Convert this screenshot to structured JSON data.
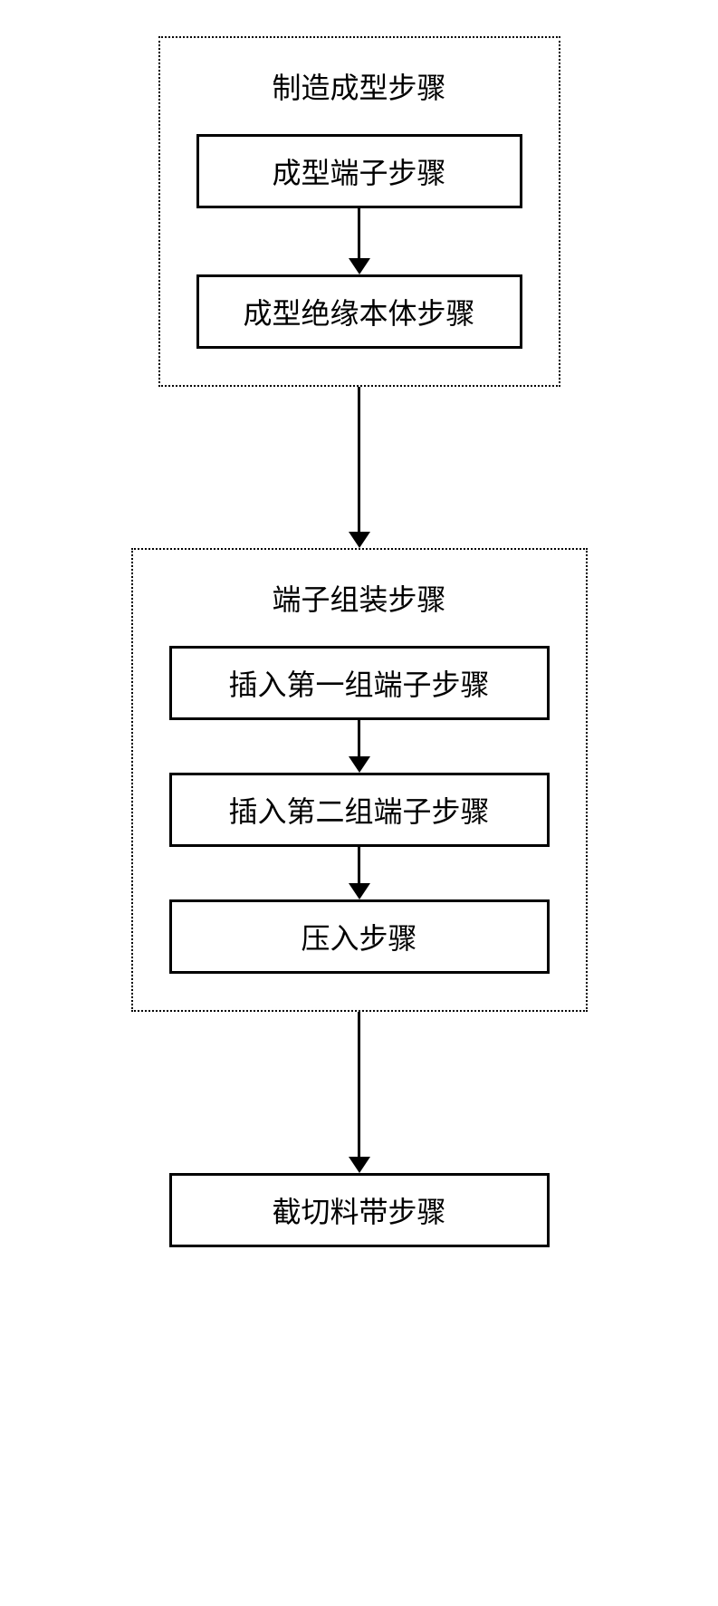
{
  "flowchart": {
    "type": "flowchart",
    "background_color": "#ffffff",
    "border_color": "#000000",
    "text_color": "#000000",
    "font_size": 32,
    "border_width_solid": 3,
    "border_width_dotted": 2,
    "border_style_group": "dotted",
    "border_style_step": "solid",
    "arrow_color": "#000000",
    "group1": {
      "title": "制造成型步骤",
      "steps": [
        {
          "label": "成型端子步骤"
        },
        {
          "label": "成型绝缘本体步骤"
        }
      ]
    },
    "group2": {
      "title": "端子组装步骤",
      "steps": [
        {
          "label": "插入第一组端子步骤"
        },
        {
          "label": "插入第二组端子步骤"
        },
        {
          "label": "压入步骤"
        }
      ]
    },
    "final_step": {
      "label": "截切料带步骤"
    },
    "arrow_lengths": {
      "short": 40,
      "medium": 55,
      "long": 160
    }
  }
}
